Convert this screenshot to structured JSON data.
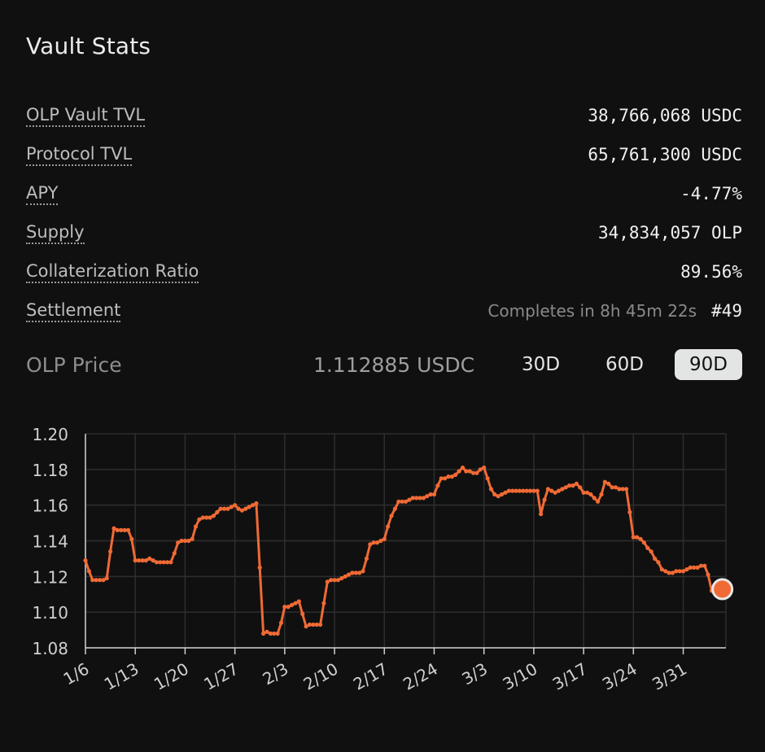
{
  "vault_stats": {
    "title": "Vault Stats",
    "rows": [
      {
        "label": "OLP Vault TVL",
        "value": "38,766,068 USDC"
      },
      {
        "label": "Protocol TVL",
        "value": "65,761,300 USDC"
      },
      {
        "label": "APY",
        "value": "-4.77%"
      },
      {
        "label": "Supply",
        "value": "34,834,057 OLP"
      },
      {
        "label": "Collaterization Ratio",
        "value": "89.56%"
      }
    ],
    "settlement": {
      "label": "Settlement",
      "countdown": "Completes in 8h 45m 22s",
      "number": "#49"
    }
  },
  "olp_price": {
    "label": "OLP Price",
    "value": "1.112885 USDC",
    "ranges": [
      "30D",
      "60D",
      "90D"
    ],
    "selected_range": "90D"
  },
  "colors": {
    "line": "#f06a35",
    "background": "#101010",
    "grid": "#2e2e2e",
    "active_range_bg": "#e3e5e4"
  },
  "chart_data": {
    "type": "line",
    "ylim": [
      1.08,
      1.2
    ],
    "yticks": [
      1.2,
      1.18,
      1.16,
      1.14,
      1.12,
      1.1,
      1.08
    ],
    "xticks": [
      "1/6",
      "1/13",
      "1/20",
      "1/27",
      "2/3",
      "2/10",
      "2/17",
      "2/24",
      "3/3",
      "3/10",
      "3/17",
      "3/24",
      "3/31"
    ],
    "grid": true,
    "series": [
      {
        "x": [
          0,
          0.5,
          1,
          1.5,
          2,
          2.5,
          3,
          3.5,
          4,
          4.5,
          5,
          5.5,
          6,
          6.5,
          7,
          7.5,
          8,
          8.5,
          9,
          9.5,
          10,
          10.5,
          11,
          11.5,
          12,
          12.5,
          13,
          13.5,
          14,
          14.5,
          15,
          15.5,
          16,
          16.5,
          17,
          17.5,
          18,
          18.5,
          19,
          19.5,
          20,
          20.5,
          21,
          21.5,
          22,
          22.5,
          23,
          23.5,
          24,
          24.5,
          25,
          25.5,
          26,
          26.5,
          27,
          27.5,
          28,
          28.5,
          29,
          29.5,
          30,
          30.5,
          31,
          31.5,
          32,
          32.5,
          33,
          33.5,
          34,
          34.5,
          35,
          35.5,
          36,
          36.5,
          37,
          37.5,
          38,
          38.5,
          39,
          39.5,
          40,
          40.5,
          41,
          41.5,
          42,
          42.5,
          43,
          43.5,
          44,
          44.5,
          45,
          45.5,
          46,
          46.5,
          47,
          47.5,
          48,
          48.5,
          49,
          49.5,
          50,
          50.5,
          51,
          51.5,
          52,
          52.5,
          53,
          53.5,
          54,
          54.5,
          55,
          55.5,
          56,
          56.5,
          57,
          57.5,
          58,
          58.5,
          59,
          59.5,
          60,
          60.5,
          61,
          61.5,
          62,
          62.5,
          63,
          63.5,
          64,
          64.5,
          65,
          65.5,
          66,
          66.5,
          67,
          67.5,
          68,
          68.5,
          69,
          69.5,
          70,
          70.5,
          71,
          71.5,
          72,
          72.5,
          73,
          73.5,
          74,
          74.5,
          75,
          75.5,
          76,
          76.5,
          77,
          77.5,
          78,
          78.5,
          79,
          79.5,
          80,
          80.5,
          81,
          81.5,
          82,
          82.5,
          83,
          83.5,
          84,
          84.5,
          85,
          85.5,
          86,
          86.5,
          87,
          87.5,
          88,
          88.5,
          89,
          89.5
        ],
        "y": [
          1.129,
          1.123,
          1.118,
          1.118,
          1.118,
          1.118,
          1.119,
          1.134,
          1.147,
          1.146,
          1.146,
          1.146,
          1.146,
          1.141,
          1.129,
          1.129,
          1.129,
          1.129,
          1.13,
          1.129,
          1.128,
          1.128,
          1.128,
          1.128,
          1.128,
          1.133,
          1.139,
          1.14,
          1.14,
          1.14,
          1.141,
          1.148,
          1.152,
          1.153,
          1.153,
          1.153,
          1.154,
          1.156,
          1.158,
          1.158,
          1.158,
          1.159,
          1.16,
          1.158,
          1.157,
          1.158,
          1.159,
          1.16,
          1.161,
          1.125,
          1.088,
          1.089,
          1.088,
          1.088,
          1.088,
          1.094,
          1.103,
          1.103,
          1.104,
          1.105,
          1.106,
          1.099,
          1.092,
          1.093,
          1.093,
          1.093,
          1.093,
          1.105,
          1.117,
          1.118,
          1.118,
          1.118,
          1.119,
          1.12,
          1.121,
          1.122,
          1.122,
          1.122,
          1.123,
          1.13,
          1.138,
          1.139,
          1.139,
          1.14,
          1.141,
          1.148,
          1.154,
          1.158,
          1.162,
          1.162,
          1.162,
          1.163,
          1.164,
          1.164,
          1.164,
          1.164,
          1.165,
          1.166,
          1.166,
          1.171,
          1.175,
          1.175,
          1.176,
          1.176,
          1.177,
          1.179,
          1.181,
          1.179,
          1.179,
          1.178,
          1.178,
          1.18,
          1.181,
          1.175,
          1.169,
          1.166,
          1.165,
          1.166,
          1.167,
          1.168,
          1.168,
          1.168,
          1.168,
          1.168,
          1.168,
          1.168,
          1.168,
          1.168,
          1.155,
          1.163,
          1.169,
          1.168,
          1.167,
          1.168,
          1.169,
          1.17,
          1.171,
          1.171,
          1.172,
          1.17,
          1.167,
          1.167,
          1.166,
          1.164,
          1.162,
          1.166,
          1.173,
          1.172,
          1.17,
          1.17,
          1.169,
          1.169,
          1.169,
          1.156,
          1.142,
          1.142,
          1.141,
          1.139,
          1.136,
          1.134,
          1.13,
          1.128,
          1.124,
          1.123,
          1.122,
          1.122,
          1.123,
          1.123,
          1.123,
          1.124,
          1.125,
          1.125,
          1.125,
          1.126,
          1.126,
          1.121,
          1.112,
          1.112,
          1.113,
          1.113
        ]
      }
    ],
    "last_point": {
      "x": 89.5,
      "y": 1.112885
    }
  }
}
